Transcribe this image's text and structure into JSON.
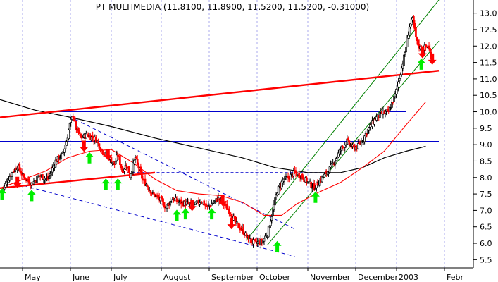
{
  "chart_data": {
    "type": "candlestick",
    "title": "PT MULTIMEDIA (11.8100, 11.8900, 11.5200, 11.5200, -0.31000)",
    "x_labels": [
      "May",
      "June",
      "July",
      "August",
      "September",
      "October",
      "November",
      "December",
      "2003",
      "Febr"
    ],
    "y_ticks": [
      5.5,
      6.0,
      6.5,
      7.0,
      7.5,
      8.0,
      8.5,
      9.0,
      9.5,
      10.0,
      10.5,
      11.0,
      11.5,
      12.0,
      12.5,
      13.0
    ],
    "ylim": [
      5.25,
      13.4
    ],
    "x_range_days": 0,
    "grid": true,
    "colors": {
      "up": "#000000",
      "down": "#ff0000",
      "ma_long": "#000000",
      "ma_short": "#ff0000",
      "support": "#0000cc",
      "channel": "#008000",
      "trendline": "#ff0000",
      "buy_signal": "#00ee00",
      "sell_signal": "#ff0000",
      "grid": "#aaaaee"
    },
    "price_path": [
      [
        0,
        7.6
      ],
      [
        8,
        8.1
      ],
      [
        14,
        8.35
      ],
      [
        20,
        8.0
      ],
      [
        27,
        7.8
      ],
      [
        34,
        8.05
      ],
      [
        42,
        7.95
      ],
      [
        49,
        8.5
      ],
      [
        55,
        8.7
      ],
      [
        59,
        9.1
      ],
      [
        62,
        9.6
      ],
      [
        65,
        9.9
      ],
      [
        68,
        9.5
      ],
      [
        72,
        9.2
      ],
      [
        78,
        9.3
      ],
      [
        86,
        9.15
      ],
      [
        92,
        8.8
      ],
      [
        98,
        8.6
      ],
      [
        103,
        8.4
      ],
      [
        106,
        8.7
      ],
      [
        110,
        8.2
      ],
      [
        114,
        8.4
      ],
      [
        117,
        8.05
      ],
      [
        122,
        8.6
      ],
      [
        126,
        8.2
      ],
      [
        129,
        7.9
      ],
      [
        132,
        7.8
      ],
      [
        138,
        7.5
      ],
      [
        144,
        7.35
      ],
      [
        150,
        7.1
      ],
      [
        156,
        7.35
      ],
      [
        162,
        7.25
      ],
      [
        170,
        7.2
      ],
      [
        176,
        7.15
      ],
      [
        182,
        7.3
      ],
      [
        188,
        7.1
      ],
      [
        194,
        7.25
      ],
      [
        198,
        7.35
      ],
      [
        204,
        7.15
      ],
      [
        210,
        6.9
      ],
      [
        214,
        6.6
      ],
      [
        220,
        6.4
      ],
      [
        226,
        6.1
      ],
      [
        232,
        6.0
      ],
      [
        238,
        6.05
      ],
      [
        243,
        6.3
      ],
      [
        248,
        7.0
      ],
      [
        252,
        7.6
      ],
      [
        257,
        7.9
      ],
      [
        262,
        8.0
      ],
      [
        268,
        8.15
      ],
      [
        274,
        8.05
      ],
      [
        280,
        7.85
      ],
      [
        286,
        7.7
      ],
      [
        291,
        7.9
      ],
      [
        296,
        8.1
      ],
      [
        301,
        8.3
      ],
      [
        306,
        8.6
      ],
      [
        311,
        8.9
      ],
      [
        316,
        9.1
      ],
      [
        321,
        8.9
      ],
      [
        326,
        8.95
      ],
      [
        331,
        9.2
      ],
      [
        336,
        9.5
      ],
      [
        342,
        9.8
      ],
      [
        348,
        9.95
      ],
      [
        354,
        10.0
      ],
      [
        360,
        10.5
      ],
      [
        365,
        11.2
      ],
      [
        369,
        11.8
      ],
      [
        373,
        12.6
      ],
      [
        376,
        12.8
      ],
      [
        380,
        12.1
      ],
      [
        384,
        11.9
      ],
      [
        390,
        12.0
      ],
      [
        394,
        11.6
      ]
    ],
    "ma_long": [
      [
        -10,
        10.45
      ],
      [
        30,
        10.05
      ],
      [
        60,
        9.85
      ],
      [
        100,
        9.55
      ],
      [
        140,
        9.2
      ],
      [
        180,
        8.9
      ],
      [
        220,
        8.6
      ],
      [
        250,
        8.3
      ],
      [
        280,
        8.15
      ],
      [
        310,
        8.15
      ],
      [
        330,
        8.3
      ],
      [
        350,
        8.6
      ],
      [
        370,
        8.8
      ],
      [
        388,
        8.95
      ]
    ],
    "ma_short": [
      [
        0,
        7.7
      ],
      [
        20,
        7.95
      ],
      [
        40,
        8.2
      ],
      [
        60,
        8.6
      ],
      [
        80,
        8.8
      ],
      [
        100,
        8.85
      ],
      [
        120,
        8.45
      ],
      [
        140,
        7.95
      ],
      [
        160,
        7.6
      ],
      [
        180,
        7.5
      ],
      [
        200,
        7.45
      ],
      [
        220,
        7.25
      ],
      [
        240,
        6.85
      ],
      [
        256,
        6.85
      ],
      [
        270,
        7.2
      ],
      [
        290,
        7.55
      ],
      [
        310,
        7.85
      ],
      [
        330,
        8.3
      ],
      [
        350,
        8.8
      ],
      [
        370,
        9.6
      ],
      [
        388,
        10.3
      ]
    ],
    "support_levels": [
      {
        "value": 10.0,
        "from_day": 45,
        "to_day": 370
      },
      {
        "value": 9.1,
        "from_day": -10,
        "to_day": 400
      }
    ],
    "dashed_support": {
      "value": 8.15,
      "from_day": 110,
      "to_day": 300
    },
    "trendlines": [
      {
        "from": [
          -10,
          9.8
        ],
        "to": [
          400,
          11.25
        ],
        "style": "solid"
      },
      {
        "from": [
          -10,
          7.65
        ],
        "to": [
          140,
          8.15
        ],
        "style": "solid"
      }
    ],
    "down_channel": [
      {
        "from": [
          62,
          9.85
        ],
        "to": [
          270,
          6.4
        ],
        "style": "dashed"
      },
      {
        "from": [
          20,
          7.75
        ],
        "to": [
          268,
          5.6
        ],
        "style": "dashed"
      }
    ],
    "up_channel": [
      {
        "from": [
          224,
          6.1
        ],
        "to": [
          400,
          13.4
        ],
        "style": "solid"
      },
      {
        "from": [
          243,
          5.95
        ],
        "to": [
          400,
          12.15
        ],
        "style": "solid"
      }
    ],
    "buy_signals": [
      [
        0,
        7.5
      ],
      [
        27,
        7.45
      ],
      [
        80,
        8.6
      ],
      [
        95,
        7.8
      ],
      [
        106,
        7.8
      ],
      [
        160,
        6.85
      ],
      [
        168,
        6.9
      ],
      [
        192,
        6.9
      ],
      [
        252,
        5.9
      ],
      [
        287,
        7.4
      ],
      [
        384,
        11.45
      ]
    ],
    "sell_signals": [
      [
        14,
        7.85
      ],
      [
        75,
        8.95
      ],
      [
        97,
        8.7
      ],
      [
        174,
        7.15
      ],
      [
        202,
        7.3
      ],
      [
        210,
        6.6
      ],
      [
        385,
        11.8
      ],
      [
        394,
        11.6
      ]
    ]
  }
}
